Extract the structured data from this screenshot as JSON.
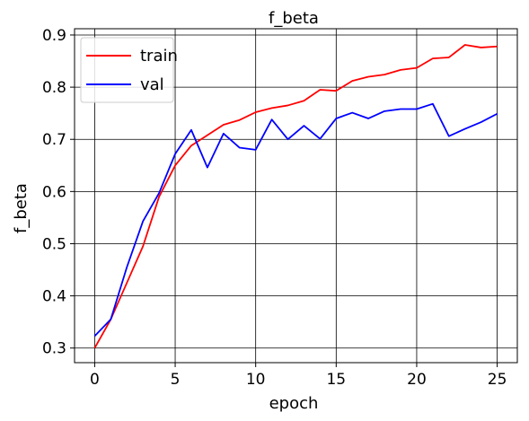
{
  "chart_data": {
    "type": "line",
    "title": "f_beta",
    "xlabel": "epoch",
    "ylabel": "f_beta",
    "xlim": [
      -1.25,
      26.25
    ],
    "ylim": [
      0.272,
      0.912
    ],
    "xticks": [
      0,
      5,
      10,
      15,
      20,
      25
    ],
    "yticks": [
      0.3,
      0.4,
      0.5,
      0.6,
      0.7,
      0.8,
      0.9
    ],
    "grid": true,
    "legend_position": "upper-left",
    "x": [
      0,
      1,
      2,
      3,
      4,
      5,
      6,
      7,
      8,
      9,
      10,
      11,
      12,
      13,
      14,
      15,
      16,
      17,
      18,
      19,
      20,
      21,
      22,
      23,
      24,
      25
    ],
    "series": [
      {
        "name": "train",
        "color": "#ff0000",
        "values": [
          0.3,
          0.355,
          0.425,
          0.495,
          0.59,
          0.65,
          0.688,
          0.708,
          0.728,
          0.737,
          0.752,
          0.76,
          0.765,
          0.774,
          0.795,
          0.793,
          0.812,
          0.82,
          0.824,
          0.833,
          0.837,
          0.855,
          0.857,
          0.881,
          0.876,
          0.878
        ]
      },
      {
        "name": "val",
        "color": "#0000ff",
        "values": [
          0.323,
          0.355,
          0.455,
          0.543,
          0.597,
          0.672,
          0.718,
          0.646,
          0.711,
          0.684,
          0.68,
          0.738,
          0.7,
          0.726,
          0.701,
          0.74,
          0.751,
          0.74,
          0.754,
          0.758,
          0.758,
          0.768,
          0.706,
          0.72,
          0.733,
          0.749
        ]
      }
    ]
  }
}
